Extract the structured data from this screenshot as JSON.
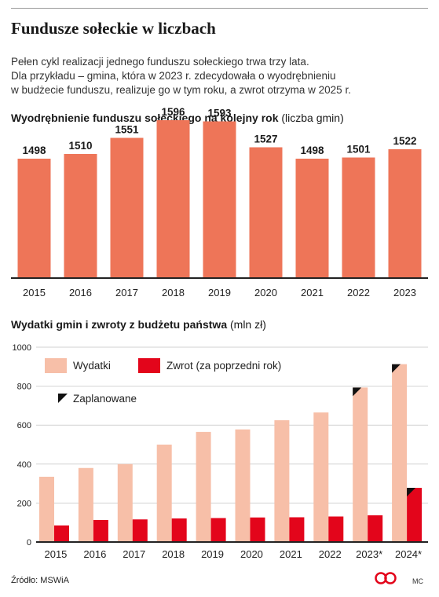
{
  "title": "Fundusze sołeckie w liczbach",
  "intro": [
    "Pełen cykl realizacji jednego funduszu sołeckiego trwa trzy lata.",
    "Dla przykładu – gmina, która w 2023 r. zdecydowała o wyodrębnieniu",
    "w budżecie funduszu, realizuje go w tym roku, a zwrot otrzyma w 2025 r."
  ],
  "source": "Źródło: MSWiA",
  "author": "MC",
  "colors": {
    "bar1": "#ee7558",
    "wydatki": "#f7bfa8",
    "zwrot": "#e3051b",
    "planned": "#111111",
    "axis": "#222222"
  },
  "chart_data": [
    {
      "type": "bar",
      "title_bold": "Wyodrębnienie funduszu sołeckiego na kolejny rok",
      "title_unit": "(liczba gmin)",
      "categories": [
        "2015",
        "2016",
        "2017",
        "2018",
        "2019",
        "2020",
        "2021",
        "2022",
        "2023"
      ],
      "values": [
        1498,
        1510,
        1551,
        1596,
        1593,
        1527,
        1498,
        1501,
        1522
      ],
      "data_labels": true,
      "grid": false
    },
    {
      "type": "bar",
      "title_bold": "Wydatki gmin i zwroty z budżetu państwa",
      "title_unit": "(mln zł)",
      "categories": [
        "2015",
        "2016",
        "2017",
        "2018",
        "2019",
        "2020",
        "2021",
        "2022",
        "2023*",
        "2024*"
      ],
      "ylim": [
        0,
        1000
      ],
      "yticks": [
        0,
        200,
        400,
        600,
        800,
        1000
      ],
      "grid": true,
      "legend_position": "top-left",
      "series": [
        {
          "name": "Wydatki",
          "values": [
            335,
            380,
            400,
            500,
            565,
            578,
            625,
            665,
            793,
            913
          ]
        },
        {
          "name": "Zwrot (za poprzedni rok)",
          "values": [
            85,
            113,
            116,
            121,
            123,
            126,
            127,
            131,
            137,
            278
          ]
        }
      ],
      "planned_label": "Zaplanowane",
      "planned": {
        "Wydatki": [
          "2023*",
          "2024*"
        ],
        "Zwrot (za poprzedni rok)": [
          "2024*"
        ]
      }
    }
  ]
}
